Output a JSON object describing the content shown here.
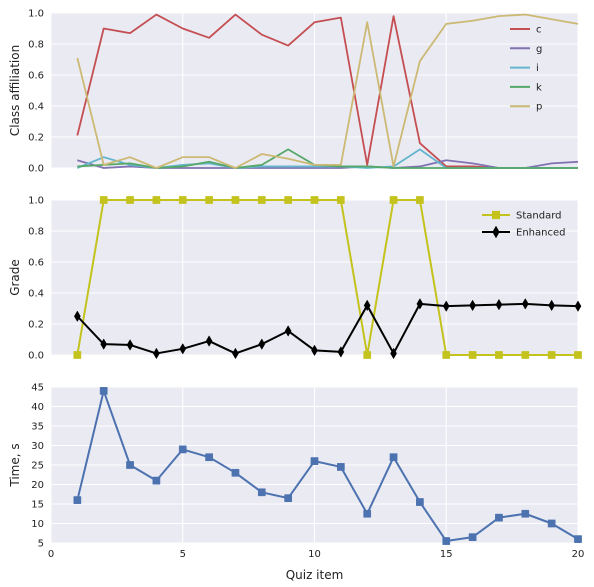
{
  "chart_data": [
    {
      "type": "line",
      "ylabel": "Class affiliation",
      "xlim": [
        0,
        20
      ],
      "ylim": [
        0,
        1.0
      ],
      "yticks": [
        "0.0",
        "0.2",
        "0.4",
        "0.6",
        "0.8",
        "1.0"
      ],
      "grid": true,
      "legend_position": "top-right",
      "x": [
        1,
        2,
        3,
        4,
        5,
        6,
        7,
        8,
        9,
        10,
        11,
        12,
        13,
        14,
        15,
        16,
        17,
        18,
        19,
        20
      ],
      "series": [
        {
          "name": "c",
          "color": "#c44e52",
          "values": [
            0.21,
            0.9,
            0.87,
            0.99,
            0.9,
            0.84,
            0.99,
            0.86,
            0.79,
            0.94,
            0.97,
            0.02,
            0.98,
            0.16,
            0.01,
            0.01,
            0.0,
            0.0,
            0.0,
            0.0
          ]
        },
        {
          "name": "g",
          "color": "#8172b2",
          "values": [
            0.05,
            0.0,
            0.01,
            0.0,
            0.0,
            0.0,
            0.0,
            0.0,
            0.0,
            0.0,
            0.0,
            0.01,
            0.0,
            0.01,
            0.05,
            0.03,
            0.0,
            0.0,
            0.03,
            0.04
          ]
        },
        {
          "name": "i",
          "color": "#64b5cd",
          "values": [
            0.0,
            0.07,
            0.02,
            0.0,
            0.02,
            0.03,
            0.0,
            0.01,
            0.01,
            0.01,
            0.01,
            0.0,
            0.01,
            0.12,
            0.0,
            0.0,
            0.0,
            0.0,
            0.0,
            0.0
          ]
        },
        {
          "name": "k",
          "color": "#55a868",
          "values": [
            0.01,
            0.02,
            0.03,
            0.0,
            0.01,
            0.04,
            0.0,
            0.02,
            0.12,
            0.02,
            0.01,
            0.01,
            0.0,
            0.0,
            0.0,
            0.0,
            0.0,
            0.0,
            0.0,
            0.0
          ]
        },
        {
          "name": "p",
          "color": "#ccb974",
          "values": [
            0.71,
            0.02,
            0.07,
            0.0,
            0.07,
            0.07,
            0.0,
            0.09,
            0.06,
            0.02,
            0.02,
            0.94,
            0.01,
            0.69,
            0.93,
            0.95,
            0.98,
            0.99,
            0.96,
            0.93
          ]
        }
      ]
    },
    {
      "type": "line",
      "ylabel": "Grade",
      "xlim": [
        0,
        20
      ],
      "ylim": [
        0,
        1.0
      ],
      "yticks": [
        "0.0",
        "0.2",
        "0.4",
        "0.6",
        "0.8",
        "1.0"
      ],
      "grid": true,
      "legend_position": "top-right",
      "x": [
        1,
        2,
        3,
        4,
        5,
        6,
        7,
        8,
        9,
        10,
        11,
        12,
        13,
        14,
        15,
        16,
        17,
        18,
        19,
        20
      ],
      "series": [
        {
          "name": "Standard",
          "color": "#c4c21c",
          "marker": "square",
          "values": [
            0,
            1,
            1,
            1,
            1,
            1,
            1,
            1,
            1,
            1,
            1,
            0,
            1,
            1,
            0,
            0,
            0,
            0,
            0,
            0
          ]
        },
        {
          "name": "Enhanced",
          "color": "#000000",
          "marker": "diamond",
          "values": [
            0.25,
            0.07,
            0.065,
            0.01,
            0.04,
            0.09,
            0.01,
            0.07,
            0.155,
            0.03,
            0.02,
            0.32,
            0.01,
            0.33,
            0.315,
            0.32,
            0.325,
            0.33,
            0.32,
            0.315
          ]
        }
      ]
    },
    {
      "type": "line",
      "xlabel": "Quiz item",
      "ylabel": "Time, s",
      "xlim": [
        0,
        20
      ],
      "ylim": [
        5,
        45
      ],
      "xticks": [
        "0",
        "5",
        "10",
        "15",
        "20"
      ],
      "yticks": [
        "5",
        "10",
        "15",
        "20",
        "25",
        "30",
        "35",
        "40",
        "45"
      ],
      "grid": true,
      "x": [
        1,
        2,
        3,
        4,
        5,
        6,
        7,
        8,
        9,
        10,
        11,
        12,
        13,
        14,
        15,
        16,
        17,
        18,
        19,
        20
      ],
      "series": [
        {
          "color": "#4c72b0",
          "marker": "square",
          "values": [
            16,
            44,
            25,
            21,
            29,
            27,
            23,
            18,
            16.5,
            26,
            24.5,
            12.5,
            27,
            15.5,
            5.5,
            6.5,
            11.5,
            12.5,
            10,
            6
          ]
        }
      ]
    }
  ]
}
